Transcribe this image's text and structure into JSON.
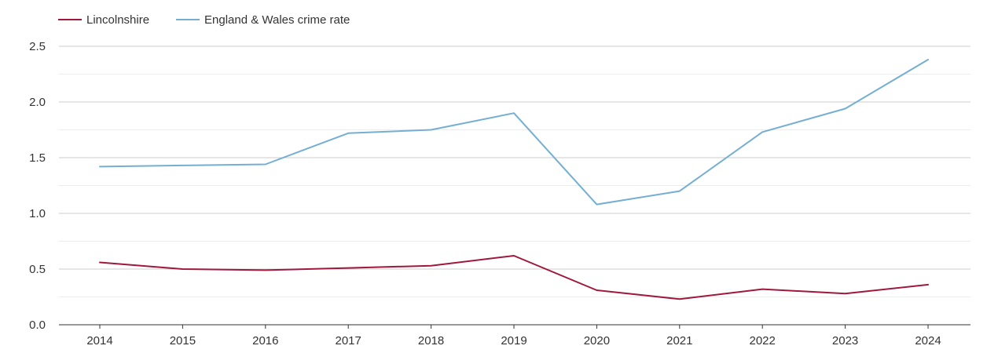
{
  "chart_data": {
    "type": "line",
    "title": "",
    "xlabel": "",
    "ylabel": "",
    "x": [
      2014,
      2015,
      2016,
      2017,
      2018,
      2019,
      2020,
      2021,
      2022,
      2023,
      2024
    ],
    "x_tick_labels": [
      "2014",
      "2015",
      "2016",
      "2017",
      "2018",
      "2019",
      "2020",
      "2021",
      "2022",
      "2023",
      "2024"
    ],
    "ylim": [
      0,
      2.5
    ],
    "y_ticks": [
      0,
      0.5,
      1.0,
      1.5,
      2.0,
      2.5
    ],
    "y_tick_labels": [
      "0.0",
      "0.5",
      "1.0",
      "1.5",
      "2.0",
      "2.5"
    ],
    "grid": true,
    "legend_position": "top-left",
    "series": [
      {
        "name": "Lincolnshire",
        "color": "#a0183c",
        "values": [
          0.56,
          0.5,
          0.49,
          0.51,
          0.53,
          0.62,
          0.31,
          0.23,
          0.32,
          0.28,
          0.36
        ]
      },
      {
        "name": "England & Wales crime rate",
        "color": "#74afd3",
        "values": [
          1.42,
          1.43,
          1.44,
          1.72,
          1.75,
          1.9,
          1.08,
          1.2,
          1.73,
          1.94,
          2.38
        ]
      }
    ]
  }
}
